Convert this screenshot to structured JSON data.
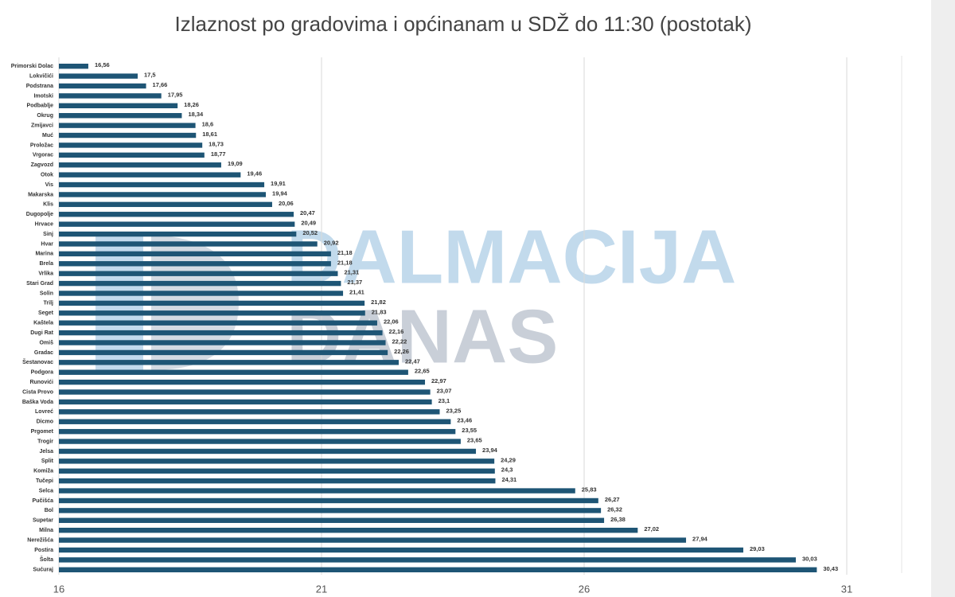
{
  "chart_data": {
    "type": "hbar",
    "title": "Izlaznost po gradovima i općinanam u SDŽ do 11:30 (postotak)",
    "watermark": [
      "DALMACIJA",
      "DANAS"
    ],
    "categories": [
      "Primorski Dolac",
      "Lokvičići",
      "Podstrana",
      "Imotski",
      "Podbablje",
      "Okrug",
      "Zmijavci",
      "Muć",
      "Proložac",
      "Vrgorac",
      "Zagvozd",
      "Otok",
      "Vis",
      "Makarska",
      "Klis",
      "Dugopolje",
      "Hrvace",
      "Sinj",
      "Hvar",
      "Marina",
      "Brela",
      "Vrlika",
      "Stari Grad",
      "Solin",
      "Trilj",
      "Seget",
      "Kaštela",
      "Dugi Rat",
      "Omiš",
      "Gradac",
      "Šestanovac",
      "Podgora",
      "Runovići",
      "Cista Provo",
      "Baška Voda",
      "Lovreć",
      "Dicmo",
      "Prgomet",
      "Trogir",
      "Jelsa",
      "Split",
      "Komiža",
      "Tučepi",
      "Selca",
      "Pučišća",
      "Bol",
      "Supetar",
      "Milna",
      "Nerežišća",
      "Postira",
      "Šolta",
      "Sućuraj"
    ],
    "values": [
      16.56,
      17.5,
      17.66,
      17.95,
      18.26,
      18.34,
      18.6,
      18.61,
      18.73,
      18.77,
      19.09,
      19.46,
      19.91,
      19.94,
      20.06,
      20.47,
      20.49,
      20.52,
      20.92,
      21.18,
      21.18,
      21.31,
      21.37,
      21.41,
      21.82,
      21.83,
      22.06,
      22.16,
      22.22,
      22.26,
      22.47,
      22.65,
      22.97,
      23.07,
      23.1,
      23.25,
      23.46,
      23.55,
      23.65,
      23.94,
      24.29,
      24.3,
      24.31,
      25.83,
      26.27,
      26.32,
      26.38,
      27.02,
      27.94,
      29.03,
      30.03,
      30.43
    ],
    "value_labels": [
      "16,56",
      "17,5",
      "17,66",
      "17,95",
      "18,26",
      "18,34",
      "18,6",
      "18,61",
      "18,73",
      "18,77",
      "19,09",
      "19,46",
      "19,91",
      "19,94",
      "20,06",
      "20,47",
      "20,49",
      "20,52",
      "20,92",
      "21,18",
      "21,18",
      "21,31",
      "21,37",
      "21,41",
      "21,82",
      "21,83",
      "22,06",
      "22,16",
      "22,22",
      "22,26",
      "22,47",
      "22,65",
      "22,97",
      "23,07",
      "23,1",
      "23,25",
      "23,46",
      "23,55",
      "23,65",
      "23,94",
      "24,29",
      "24,3",
      "24,31",
      "25,83",
      "26,27",
      "26,32",
      "26,38",
      "27,02",
      "27,94",
      "29,03",
      "30,03",
      "30,43"
    ],
    "color": "#1e5575",
    "xlim": [
      16,
      31
    ],
    "xticks": [
      16,
      21,
      26,
      31
    ],
    "grid": true
  }
}
